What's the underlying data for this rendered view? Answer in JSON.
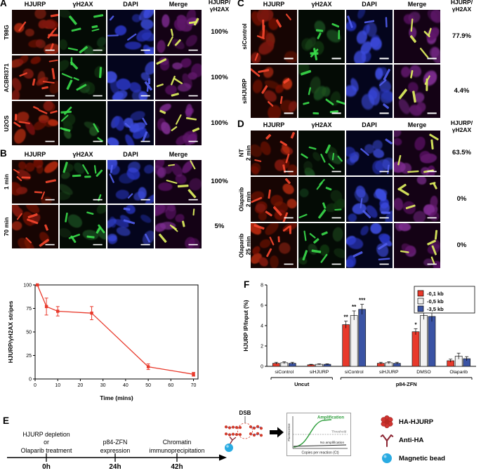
{
  "micro_panels": {
    "A": {
      "label": "A",
      "col_headers": [
        "HJURP",
        "γH2AX",
        "DAPI",
        "Merge"
      ],
      "ratio_header_lines": [
        "HJURP/",
        "γH2AX"
      ],
      "rows": [
        {
          "label_lines": [
            "T98G"
          ],
          "percent": "100%"
        },
        {
          "label_lines": [
            "ACBRI371"
          ],
          "percent": "100%"
        },
        {
          "label_lines": [
            "U2OS"
          ],
          "percent": "100%"
        }
      ]
    },
    "B": {
      "label": "B",
      "col_headers": [
        "HJURP",
        "γH2AX",
        "DAPI",
        "Merge"
      ],
      "rows": [
        {
          "label_lines": [
            "1 min"
          ],
          "percent": "100%"
        },
        {
          "label_lines": [
            "70 min"
          ],
          "percent": "5%"
        }
      ]
    },
    "C": {
      "label": "C",
      "col_headers": [
        "HJURP",
        "γH2AX",
        "DAPI",
        "Merge"
      ],
      "ratio_header_lines": [
        "HJURP/",
        "γH2AX"
      ],
      "rows": [
        {
          "label_lines": [
            "siControl"
          ],
          "percent": "77.9%"
        },
        {
          "label_lines": [
            "siHJURP"
          ],
          "percent": "4.4%"
        }
      ]
    },
    "D": {
      "label": "D",
      "col_headers": [
        "HJURP",
        "γH2AX",
        "DAPI",
        "Merge"
      ],
      "ratio_header_lines": [
        "HJURP/",
        "γH2AX"
      ],
      "rows": [
        {
          "label_lines": [
            "NT",
            "2 min"
          ],
          "percent": "63.5%"
        },
        {
          "label_lines": [
            "Olaparib",
            "2 min"
          ],
          "percent": "0%"
        },
        {
          "label_lines": [
            "Olaparib",
            "25 min"
          ],
          "percent": "0%"
        }
      ]
    }
  },
  "chart_data": [
    {
      "type": "line",
      "panel": "B",
      "title": "",
      "xlabel": "Time (mins)",
      "ylabel": "HJURP/γH2AX stripes",
      "xlim": [
        0,
        72
      ],
      "ylim": [
        0,
        100
      ],
      "xticks": [
        0,
        10,
        20,
        30,
        40,
        50,
        60,
        70
      ],
      "yticks": [
        0,
        25,
        50,
        75,
        100
      ],
      "grid": false,
      "series": [
        {
          "name": "HJURP/γH2AX stripes",
          "color": "#e8392b",
          "x": [
            1,
            5,
            10,
            25,
            50,
            70
          ],
          "y": [
            100,
            77,
            72,
            70,
            13,
            5
          ],
          "yerr": [
            1,
            9,
            5,
            7,
            3,
            2
          ]
        }
      ]
    },
    {
      "type": "bar",
      "panel": "F",
      "title": "",
      "ylabel": "HJURP IP/Input (%)",
      "ylim": [
        0,
        8
      ],
      "yticks": [
        0,
        2,
        4,
        6,
        8
      ],
      "categories": [
        "siControl",
        "siHJURP",
        "siControl",
        "siHJURP",
        "DMSO",
        "Olaparib"
      ],
      "group_brackets": [
        {
          "label": "Uncut",
          "from": 0,
          "to": 1
        },
        {
          "label": "p84-ZFN",
          "from": 2,
          "to": 5
        }
      ],
      "legend_position": "top-right",
      "series": [
        {
          "name": "-0,1 kb",
          "color": "#e8392b",
          "values": [
            0.3,
            0.15,
            4.1,
            0.3,
            3.4,
            0.55
          ],
          "err": [
            0.1,
            0.05,
            0.35,
            0.1,
            0.3,
            0.15
          ],
          "sig": [
            "",
            "",
            "**",
            "",
            "*",
            ""
          ]
        },
        {
          "name": "-0,5 kb",
          "color": "#f2f2f2",
          "values": [
            0.35,
            0.2,
            5.0,
            0.35,
            5.0,
            1.0
          ],
          "err": [
            0.1,
            0.05,
            0.45,
            0.1,
            0.4,
            0.3
          ],
          "sig": [
            "",
            "",
            "**",
            "",
            "***",
            ""
          ]
        },
        {
          "name": "-3,5 kb",
          "color": "#3a53a4",
          "values": [
            0.3,
            0.2,
            5.6,
            0.3,
            4.9,
            0.75
          ],
          "err": [
            0.1,
            0.05,
            0.5,
            0.1,
            0.5,
            0.2
          ],
          "sig": [
            "",
            "",
            "***",
            "",
            "**",
            ""
          ]
        }
      ]
    }
  ],
  "panel_F_label": "F",
  "panel_E": {
    "label": "E",
    "steps": [
      {
        "time": "0h",
        "lines": [
          "HJURP depletion",
          "or",
          "Olaparib treatment"
        ]
      },
      {
        "time": "24h",
        "lines": [
          "p84-ZFN",
          "expression"
        ]
      },
      {
        "time": "42h",
        "lines": [
          "Chromatin",
          "immunoprecipitation"
        ]
      }
    ],
    "dsb_label": "DSB",
    "qpcr": {
      "ylabel": "Fluorescence",
      "amplification_label": "Amplification",
      "threshold_label": "Threshold",
      "no_amplification_label": "No amplification",
      "xlabel": "Copies per reaction (Ct)"
    },
    "legend": [
      {
        "label": "HA-HJURP",
        "color": "#cf3430"
      },
      {
        "label": "Anti-HA",
        "color": "#8c2633"
      },
      {
        "label": "Magnetic bead",
        "color": "#29abe2"
      }
    ]
  },
  "colors": {
    "line_red": "#e8392b",
    "bar_red": "#e8392b",
    "bar_white": "#f2f2f2",
    "bar_blue": "#3a53a4",
    "amplification_green": "#2e9e3c",
    "bead_blue": "#29abe2",
    "antibody_maroon": "#8c2633"
  }
}
